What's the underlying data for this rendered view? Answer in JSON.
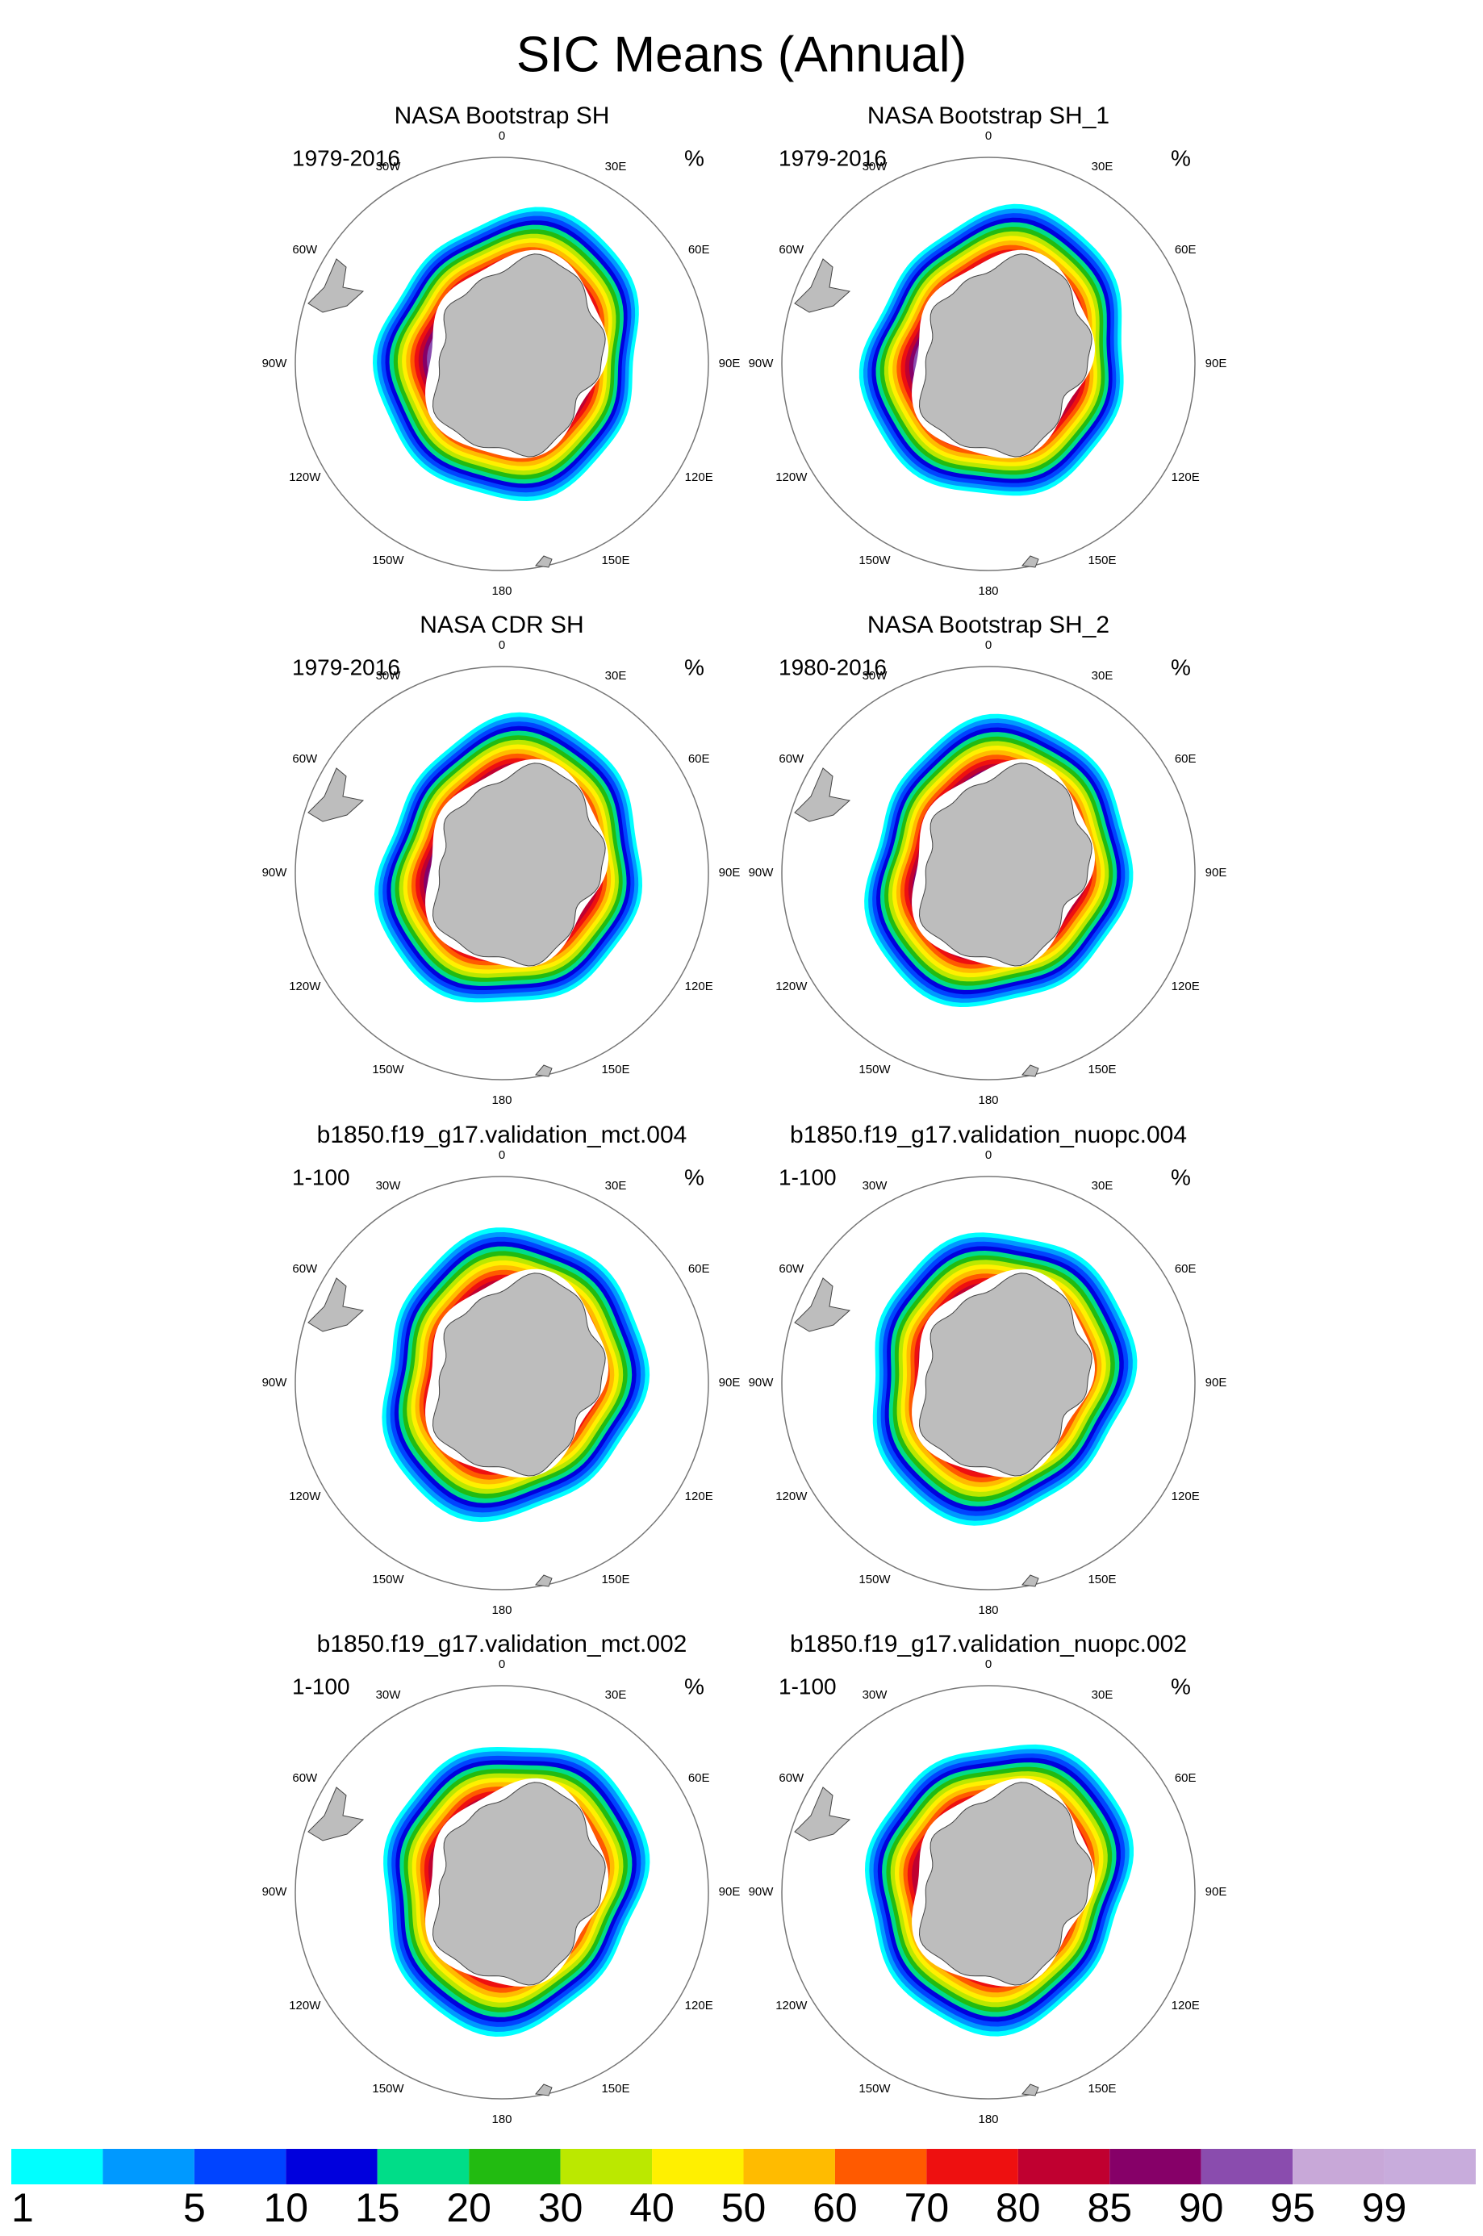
{
  "title": "SIC Means (Annual)",
  "map": {
    "lon_labels": [
      "0",
      "30E",
      "60E",
      "90E",
      "120E",
      "150E",
      "180",
      "150W",
      "120W",
      "90W",
      "60W",
      "30W"
    ]
  },
  "panels": [
    {
      "title": "NASA Bootstrap SH",
      "period": "1979-2016",
      "unit": "%"
    },
    {
      "title": "NASA Bootstrap SH_1",
      "period": "1979-2016",
      "unit": "%"
    },
    {
      "title": "NASA CDR SH",
      "period": "1979-2016",
      "unit": "%"
    },
    {
      "title": "NASA Bootstrap SH_2",
      "period": "1980-2016",
      "unit": "%"
    },
    {
      "title": "b1850.f19_g17.validation_mct.004",
      "period": "1-100",
      "unit": "%"
    },
    {
      "title": "b1850.f19_g17.validation_nuopc.004",
      "period": "1-100",
      "unit": "%"
    },
    {
      "title": "b1850.f19_g17.validation_mct.002",
      "period": "1-100",
      "unit": "%"
    },
    {
      "title": "b1850.f19_g17.validation_nuopc.002",
      "period": "1-100",
      "unit": "%"
    }
  ],
  "colorbar": {
    "colors": [
      "#00ffff",
      "#0099ff",
      "#0044ff",
      "#0000dd",
      "#00dd88",
      "#22bb11",
      "#bbe800",
      "#fff000",
      "#ffbb00",
      "#ff5a00",
      "#ee1010",
      "#c00030",
      "#860068",
      "#8a4cae",
      "#c8a8d8"
    ],
    "extra_color": "#c8acdc",
    "levels": [
      1,
      5,
      10,
      15,
      20,
      30,
      40,
      50,
      60,
      70,
      80,
      85,
      90,
      95,
      99
    ]
  }
}
